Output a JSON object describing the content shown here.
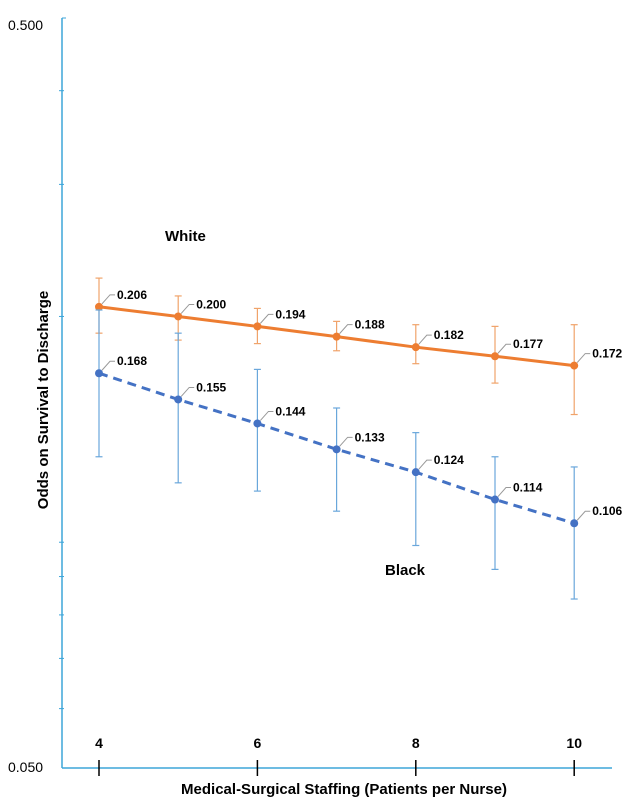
{
  "chart_data": {
    "type": "line",
    "title": "",
    "xlabel": "Medical-Surgical Staffing (Patients per Nurse)",
    "ylabel": "Odds on Survival to Discharge",
    "y_scale": "log",
    "ylim": [
      0.05,
      0.5
    ],
    "y_tick_labels": [
      "0.500",
      "0.050"
    ],
    "x": [
      4,
      5,
      6,
      7,
      8,
      9,
      10
    ],
    "x_tick_labels": [
      "4",
      "6",
      "8",
      "10"
    ],
    "x_tick_values": [
      4,
      6,
      8,
      10
    ],
    "grid": false,
    "series": [
      {
        "name": "White",
        "color": "#ED7D31",
        "line_style": "solid",
        "values": [
          0.206,
          0.2,
          0.194,
          0.188,
          0.182,
          0.177,
          0.172
        ],
        "value_labels": [
          "0.206",
          "0.200",
          "0.194",
          "0.188",
          "0.182",
          "0.177",
          "0.172"
        ],
        "ci_low": [
          0.19,
          0.186,
          0.184,
          0.18,
          0.173,
          0.163,
          0.148
        ],
        "ci_high": [
          0.225,
          0.213,
          0.205,
          0.197,
          0.195,
          0.194,
          0.195
        ]
      },
      {
        "name": "Black",
        "color": "#4472C4",
        "line_style": "dashed",
        "values": [
          0.168,
          0.155,
          0.144,
          0.133,
          0.124,
          0.114,
          0.106
        ],
        "value_labels": [
          "0.168",
          "0.155",
          "0.144",
          "0.133",
          "0.124",
          "0.114",
          "0.106"
        ],
        "ci_low": [
          0.13,
          0.12,
          0.117,
          0.11,
          0.099,
          0.092,
          0.084
        ],
        "ci_high": [
          0.204,
          0.19,
          0.17,
          0.151,
          0.14,
          0.13,
          0.126
        ]
      }
    ]
  }
}
